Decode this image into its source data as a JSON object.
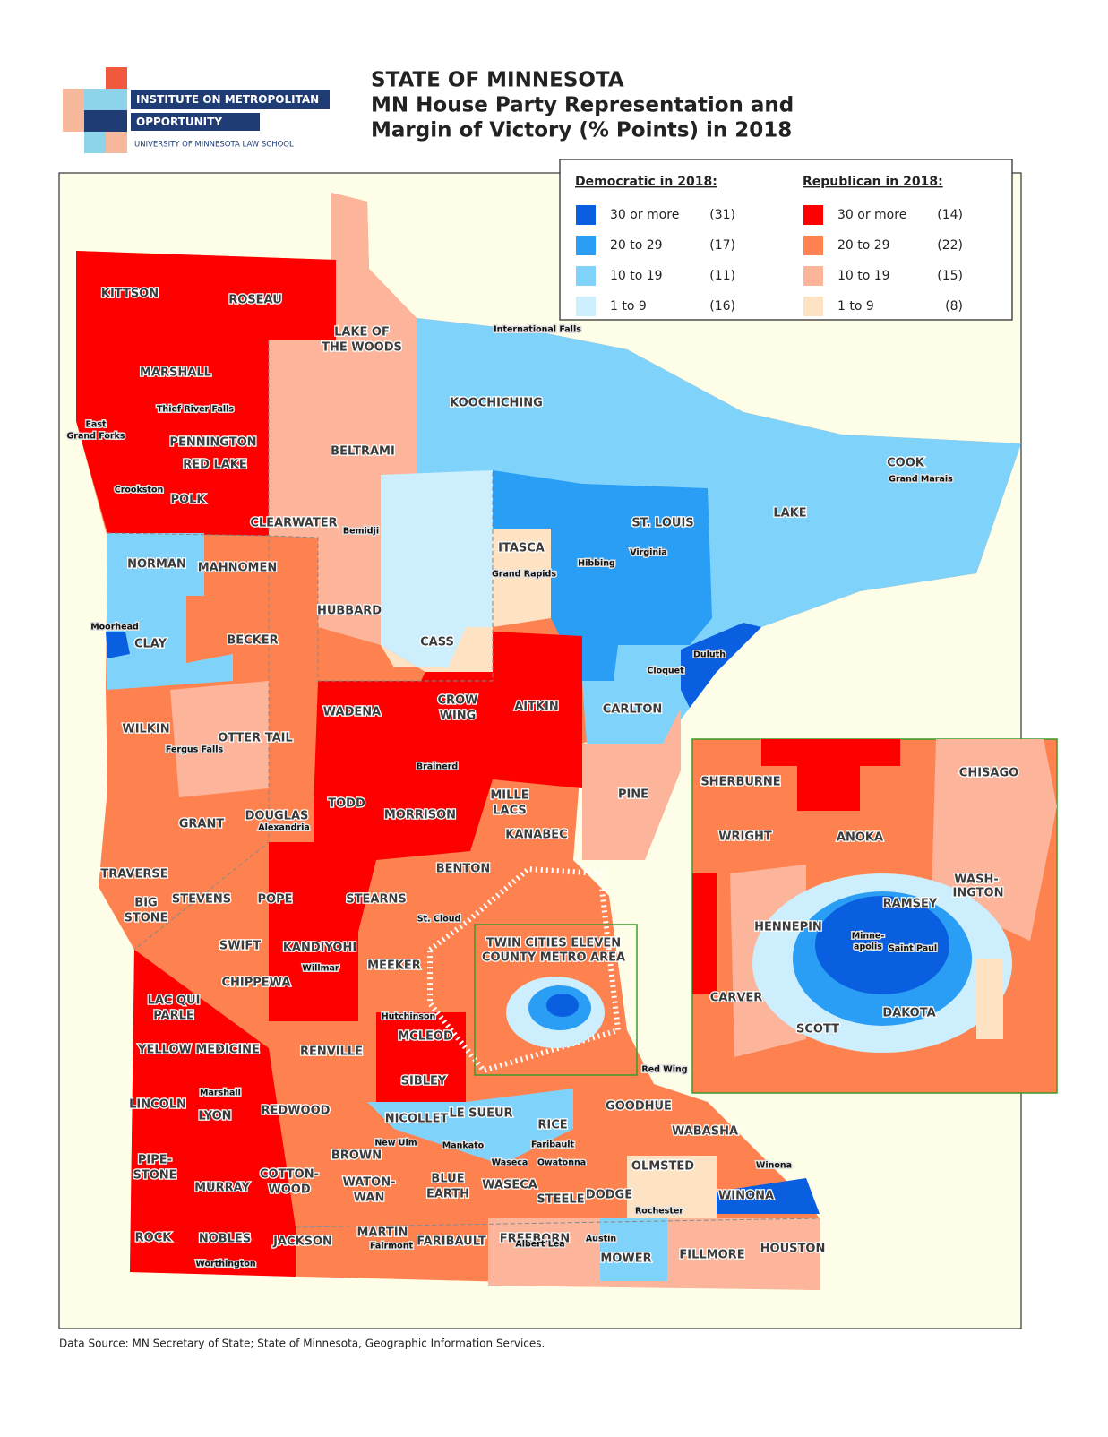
{
  "header": {
    "logo": {
      "line1": "INSTITUTE ON METROPOLITAN",
      "line2": "OPPORTUNITY",
      "line3": "UNIVERSITY OF MINNESOTA LAW SCHOOL"
    },
    "title": [
      "STATE OF MINNESOTA",
      "MN House Party Representation and",
      "Margin of Victory (% Points) in 2018"
    ]
  },
  "legend": {
    "democratic": {
      "title": "Democratic in 2018:",
      "items": [
        {
          "label": "30 or more",
          "count": "(31)",
          "color": "#0a5fe0"
        },
        {
          "label": "20 to 29",
          "count": "(17)",
          "color": "#2a9df4"
        },
        {
          "label": "10 to 19",
          "count": "(11)",
          "color": "#7fd3fb"
        },
        {
          "label": "1 to 9",
          "count": "(16)",
          "color": "#cdeefc"
        }
      ]
    },
    "republican": {
      "title": "Republican in 2018:",
      "items": [
        {
          "label": "30 or more",
          "count": "(14)",
          "color": "#fe0000"
        },
        {
          "label": "20 to 29",
          "count": "(22)",
          "color": "#fe8250"
        },
        {
          "label": "10 to 19",
          "count": "(15)",
          "color": "#fcb49a"
        },
        {
          "label": "1 to 9",
          "count": "(8)",
          "color": "#fde3c3"
        }
      ]
    }
  },
  "map": {
    "counties": [
      "KITTSON",
      "ROSEAU",
      "LAKE OF",
      "THE WOODS",
      "MARSHALL",
      "KOOCHICHING",
      "PENNINGTON",
      "RED LAKE",
      "BELTRAMI",
      "COOK",
      "POLK",
      "CLEARWATER",
      "ST. LOUIS",
      "LAKE",
      "ITASCA",
      "NORMAN",
      "MAHNOMEN",
      "HUBBARD",
      "CLAY",
      "BECKER",
      "CASS",
      "CARLTON",
      "CROW",
      "WING",
      "AITKIN",
      "WADENA",
      "WILKIN",
      "OTTER TAIL",
      "PINE",
      "MILLE",
      "LACS",
      "TODD",
      "GRANT",
      "DOUGLAS",
      "MORRISON",
      "KANABEC",
      "BENTON",
      "TRAVERSE",
      "BIG",
      "STONE",
      "STEVENS",
      "POPE",
      "STEARNS",
      "SWIFT",
      "KANDIYOHI",
      "MEEKER",
      "CHIPPEWA",
      "LAC QUI",
      "PARLE",
      "RENVILLE",
      "MCLEOD",
      "YELLOW MEDICINE",
      "SIBLEY",
      "LINCOLN",
      "LYON",
      "REDWOOD",
      "NICOLLET",
      "LE SUEUR",
      "RICE",
      "GOODHUE",
      "WABASHA",
      "BROWN",
      "PIPE-",
      "STONE",
      "MURRAY",
      "COTTON-",
      "WOOD",
      "WATON-",
      "WAN",
      "BLUE",
      "EARTH",
      "WASECA",
      "STEELE",
      "DODGE",
      "OLMSTED",
      "WINONA",
      "ROCK",
      "NOBLES",
      "JACKSON",
      "MARTIN",
      "FARIBAULT",
      "FREEBORN",
      "MOWER",
      "FILLMORE",
      "HOUSTON"
    ],
    "cities": [
      "International Falls",
      "Thief River Falls",
      "East",
      "Grand Forks",
      "Crookston",
      "Bemidji",
      "Grand Marais",
      "Grand Rapids",
      "Hibbing",
      "Virginia",
      "Moorhead",
      "Duluth",
      "Cloquet",
      "Fergus Falls",
      "Brainerd",
      "Alexandria",
      "St. Cloud",
      "Willmar",
      "Hutchinson",
      "Red Wing",
      "Marshall",
      "New Ulm",
      "Mankato",
      "Faribault",
      "Waseca",
      "Owatonna",
      "Winona",
      "Rochester",
      "Fairmont",
      "Albert Lea",
      "Austin",
      "Worthington"
    ],
    "metro_label": [
      "TWIN CITIES ELEVEN",
      "COUNTY METRO AREA"
    ],
    "inset": [
      "SHERBURNE",
      "CHISAGO",
      "WRIGHT",
      "ANOKA",
      "WASH-",
      "INGTON",
      "RAMSEY",
      "HENNEPIN",
      "Minne-",
      "apolis",
      "Saint Paul",
      "CARVER",
      "DAKOTA",
      "SCOTT"
    ]
  },
  "footer": "Data Source:  MN Secretary of State; State of Minnesota, Geographic Information Services."
}
